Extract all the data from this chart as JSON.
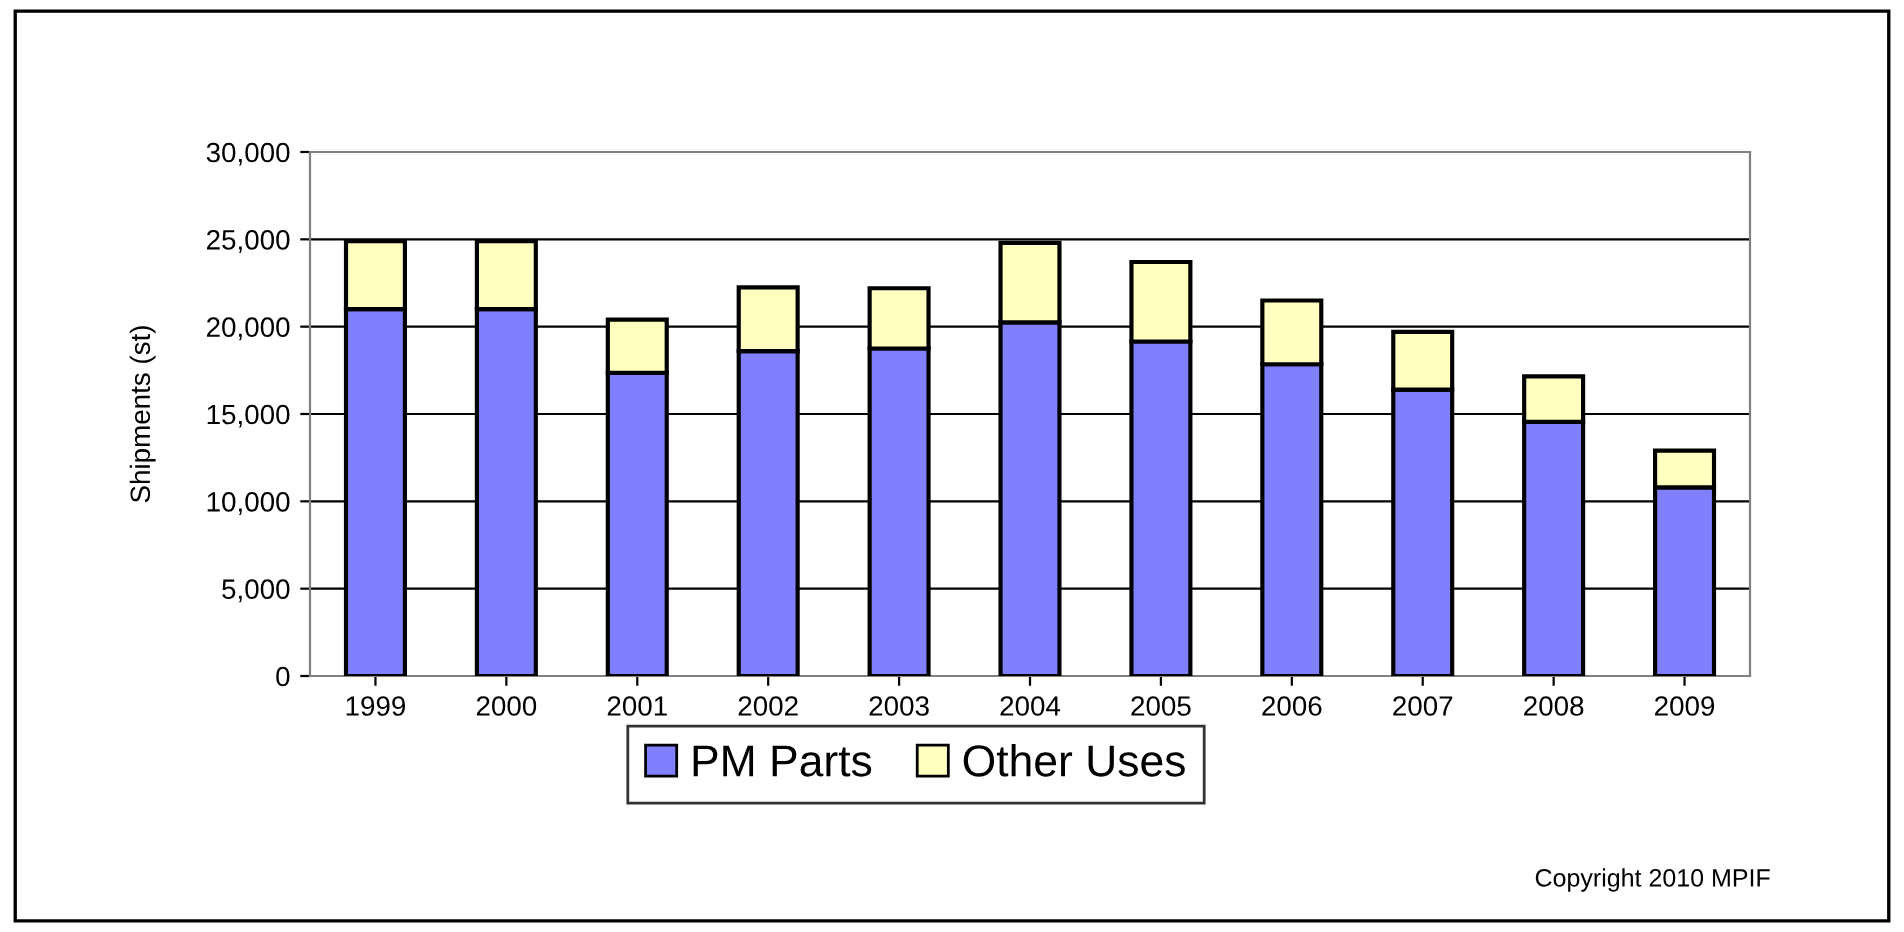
{
  "chart_data": {
    "type": "bar",
    "stacked": true,
    "ylabel": "Shipments (st)",
    "categories": [
      "1999",
      "2000",
      "2001",
      "2002",
      "2003",
      "2004",
      "2005",
      "2006",
      "2007",
      "2008",
      "2009"
    ],
    "series": [
      {
        "name": "PM Parts",
        "color": "#8080ff",
        "values": [
          21000,
          21000,
          17350,
          18600,
          18750,
          20250,
          19150,
          17850,
          16400,
          14550,
          10800
        ]
      },
      {
        "name": "Other Uses",
        "color": "#ffffc0",
        "values": [
          3900,
          3900,
          3050,
          3650,
          3450,
          4550,
          4550,
          3650,
          3300,
          2600,
          2100
        ]
      }
    ],
    "ylim": [
      0,
      30000
    ],
    "yticks": [
      {
        "value": 0,
        "label": "0"
      },
      {
        "value": 5000,
        "label": "5,000"
      },
      {
        "value": 10000,
        "label": "10,000"
      },
      {
        "value": 15000,
        "label": "15,000"
      },
      {
        "value": 20000,
        "label": "20,000"
      },
      {
        "value": 25000,
        "label": "25,000"
      },
      {
        "value": 30000,
        "label": "30,000"
      }
    ],
    "grid": "y",
    "legend": "bottom",
    "annotations": [
      "Copyright 2010 MPIF"
    ]
  }
}
